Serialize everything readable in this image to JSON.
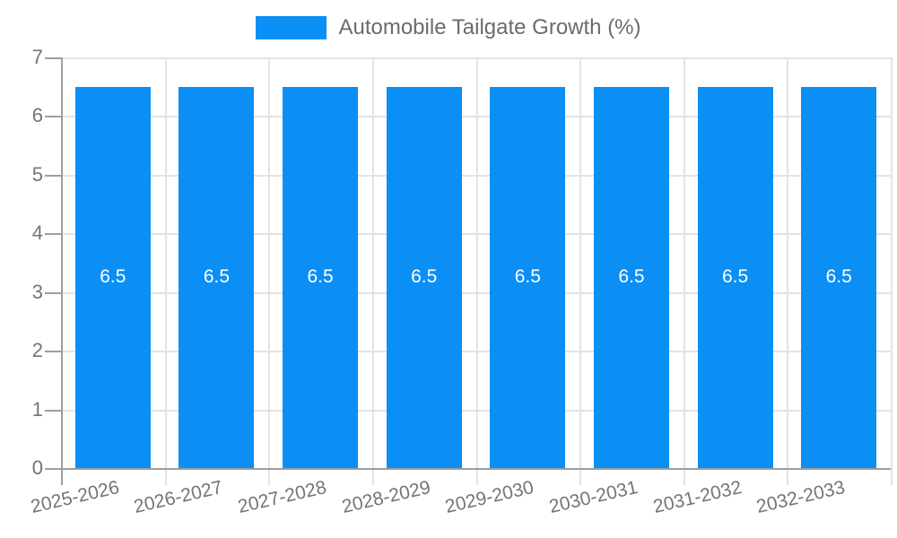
{
  "chart_data": {
    "type": "bar",
    "title": "Automobile Tailgate Growth (%)",
    "legend_position": "top",
    "legend": [
      {
        "label": "Automobile Tailgate Growth (%)",
        "color": "#0b8ff5"
      }
    ],
    "categories": [
      "2025-2026",
      "2026-2027",
      "2027-2028",
      "2028-2029",
      "2029-2030",
      "2030-2031",
      "2031-2032",
      "2032-2033"
    ],
    "series": [
      {
        "name": "Automobile Tailgate Growth (%)",
        "values": [
          6.5,
          6.5,
          6.5,
          6.5,
          6.5,
          6.5,
          6.5,
          6.5
        ]
      }
    ],
    "bar_value_labels": [
      "6.5",
      "6.5",
      "6.5",
      "6.5",
      "6.5",
      "6.5",
      "6.5",
      "6.5"
    ],
    "xlabel": "",
    "ylabel": "",
    "ylim": [
      0,
      7
    ],
    "yticks": [
      0,
      1,
      2,
      3,
      4,
      5,
      6,
      7
    ],
    "grid": true,
    "colors": {
      "bar": "#0b8ff5",
      "axis": "#9e9e9e",
      "grid": "#e3e3e3",
      "tick_label": "#757575",
      "legend_text": "#6b6b6b",
      "value_label": "#ffffff"
    }
  }
}
